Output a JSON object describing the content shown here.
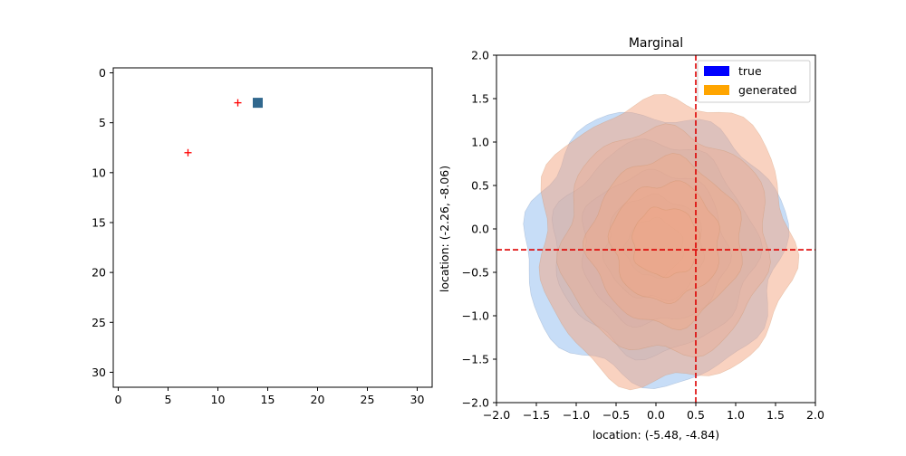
{
  "chart_data": [
    {
      "type": "scatter",
      "title": "",
      "xlabel": "",
      "ylabel": "",
      "xlim": [
        -0.5,
        31.5
      ],
      "ylim": [
        31.5,
        -0.5
      ],
      "y_inverted": true,
      "x_ticks": [
        0,
        5,
        10,
        15,
        20,
        25,
        30
      ],
      "y_ticks": [
        0,
        5,
        10,
        15,
        20,
        25,
        30
      ],
      "grid": false,
      "image_cells": [
        {
          "x": 14,
          "y": 3,
          "color": "#31688e"
        }
      ],
      "markers": [
        {
          "x": 12,
          "y": 3,
          "marker": "+",
          "color": "#ff0000"
        },
        {
          "x": 7,
          "y": 8,
          "marker": "+",
          "color": "#ff0000"
        }
      ]
    },
    {
      "type": "area",
      "kind": "kde_contour",
      "title": "Marginal",
      "xlabel": "location: (-5.48, -4.84)",
      "ylabel": "location: (-2.26, -8.06)",
      "xlim": [
        -2.0,
        2.0
      ],
      "ylim": [
        -2.0,
        2.0
      ],
      "x_ticks": [
        -2.0,
        -1.5,
        -1.0,
        -0.5,
        0.0,
        0.5,
        1.0,
        1.5,
        2.0
      ],
      "y_ticks": [
        -2.0,
        -1.5,
        -1.0,
        -0.5,
        0.0,
        0.5,
        1.0,
        1.5,
        2.0
      ],
      "grid": false,
      "legend_position": "top-right",
      "series": [
        {
          "name": "true",
          "legend_color": "#0000ff",
          "fill_color": "#8fbcf0",
          "center": [
            -0.02,
            -0.22
          ],
          "levels": [
            {
              "rx": 1.62,
              "ry": 1.55,
              "opacity": 0.5
            },
            {
              "rx": 1.25,
              "ry": 1.2,
              "opacity": 0.35
            },
            {
              "rx": 0.92,
              "ry": 0.88,
              "opacity": 0.3
            },
            {
              "rx": 0.62,
              "ry": 0.6,
              "opacity": 0.3
            },
            {
              "rx": 0.36,
              "ry": 0.33,
              "opacity": 0.35
            }
          ]
        },
        {
          "name": "generated",
          "legend_color": "#ffa500",
          "fill_color": "#f4a582",
          "center": [
            0.12,
            -0.15
          ],
          "levels": [
            {
              "rx": 1.6,
              "ry": 1.65,
              "opacity": 0.5
            },
            {
              "rx": 1.3,
              "ry": 1.3,
              "opacity": 0.3
            },
            {
              "rx": 0.95,
              "ry": 0.95,
              "opacity": 0.35
            },
            {
              "rx": 0.68,
              "ry": 0.68,
              "opacity": 0.3
            },
            {
              "rx": 0.42,
              "ry": 0.4,
              "opacity": 0.3
            }
          ]
        }
      ],
      "reference_lines": {
        "x": 0.5,
        "y": -0.24,
        "color": "#dd0000",
        "style": "dashed"
      }
    }
  ]
}
